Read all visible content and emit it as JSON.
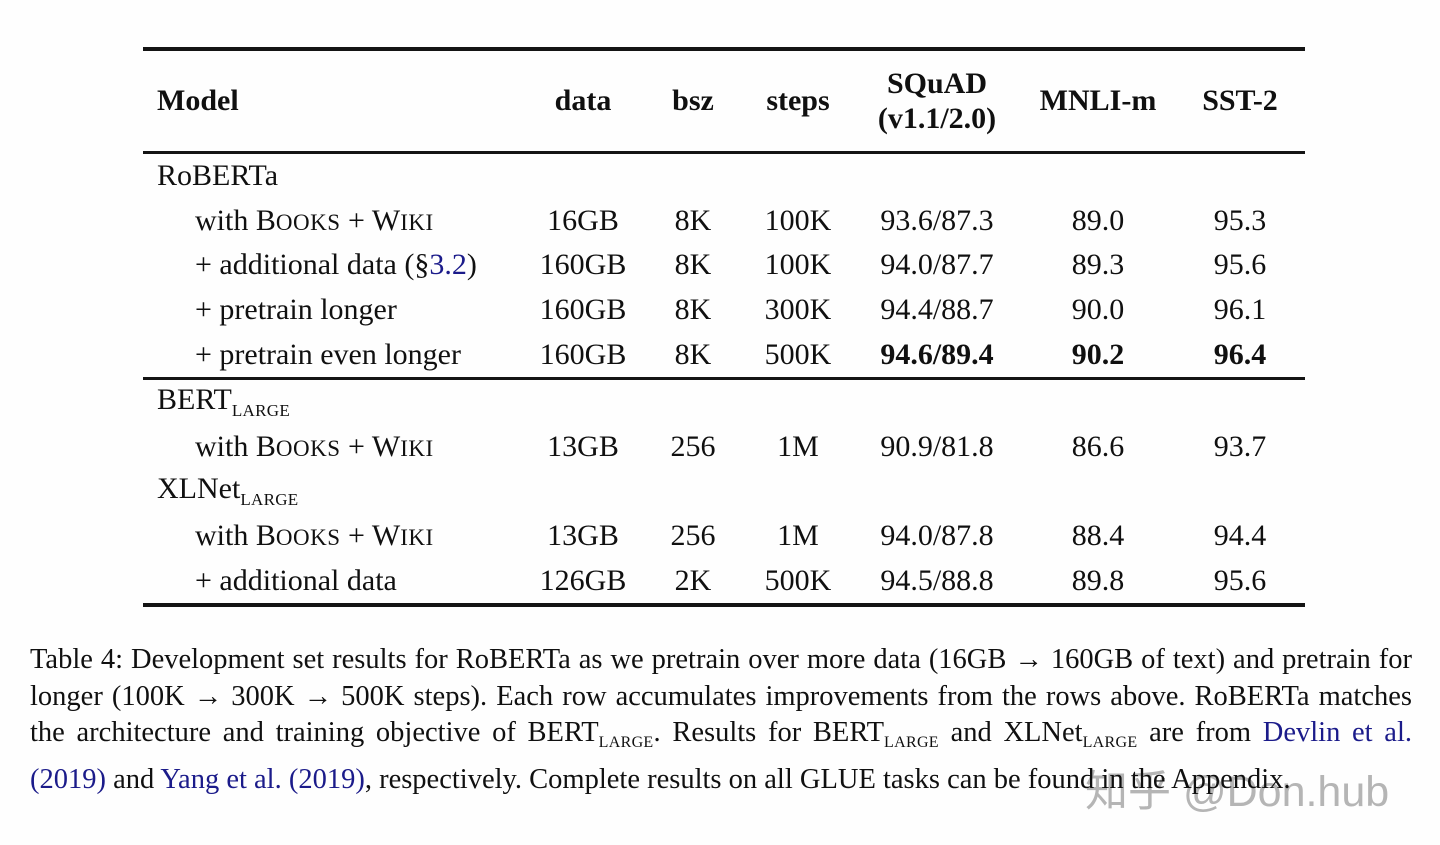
{
  "table": {
    "header": {
      "model": "Model",
      "data": "data",
      "bsz": "bsz",
      "steps": "steps",
      "squad_line1": "SQuAD",
      "squad_line2": "(v1.1/2.0)",
      "mnli": "MNLI-m",
      "sst": "SST-2"
    },
    "rows": [
      {
        "type": "group",
        "name": "RoBERTa"
      },
      {
        "type": "data",
        "label_pre": "with B",
        "label_sc1": "OOKS",
        "label_mid": " + W",
        "label_sc2": "IKI",
        "data": "16GB",
        "bsz": "8K",
        "steps": "100K",
        "squad": "93.6/87.3",
        "mnli": "89.0",
        "sst": "95.3"
      },
      {
        "type": "data",
        "label_pre": "+ additional data (§",
        "label_link": "3.2",
        "label_post": ")",
        "data": "160GB",
        "bsz": "8K",
        "steps": "100K",
        "squad": "94.0/87.7",
        "mnli": "89.3",
        "sst": "95.6"
      },
      {
        "type": "data",
        "label_pre": "+ pretrain longer",
        "data": "160GB",
        "bsz": "8K",
        "steps": "300K",
        "squad": "94.4/88.7",
        "mnli": "90.0",
        "sst": "96.1"
      },
      {
        "type": "data",
        "bold": true,
        "label_pre": "+ pretrain even longer",
        "data": "160GB",
        "bsz": "8K",
        "steps": "500K",
        "squad": "94.6/89.4",
        "mnli": "90.2",
        "sst": "96.4"
      },
      {
        "type": "group",
        "name": "BERT",
        "sub": "LARGE"
      },
      {
        "type": "data",
        "label_pre": "with B",
        "label_sc1": "OOKS",
        "label_mid": " + W",
        "label_sc2": "IKI",
        "data": "13GB",
        "bsz": "256",
        "steps": "1M",
        "squad": "90.9/81.8",
        "mnli": "86.6",
        "sst": "93.7"
      },
      {
        "type": "group",
        "name": "XLNet",
        "sub": "LARGE"
      },
      {
        "type": "data",
        "label_pre": "with B",
        "label_sc1": "OOKS",
        "label_mid": " + W",
        "label_sc2": "IKI",
        "data": "13GB",
        "bsz": "256",
        "steps": "1M",
        "squad": "94.0/87.8",
        "mnli": "88.4",
        "sst": "94.4"
      },
      {
        "type": "data",
        "label_pre": "+ additional data",
        "data": "126GB",
        "bsz": "2K",
        "steps": "500K",
        "squad": "94.5/88.8",
        "mnli": "89.8",
        "sst": "95.6"
      }
    ]
  },
  "caption": {
    "part1": "Table 4: Development set results for RoBERTa as we pretrain over more data (16GB → 160GB of text) and pretrain for longer (100K → 300K → 500K steps). Each row accumulates improvements from the rows above. RoBERTa matches the architecture and training objective of BERT",
    "sub1": "LARGE",
    "part2": ". Results for BERT",
    "sub2": "LARGE",
    "part3": " and XLNet",
    "sub3": "LARGE",
    "part4": " are from ",
    "link1": "Devlin et al. (2019)",
    "part5": " and ",
    "link2": "Yang et al. (2019)",
    "part6": ", respectively. Complete results on all GLUE tasks can be found in the Appendix."
  },
  "watermark": {
    "text": "知乎 @Don.hub"
  },
  "colors": {
    "text": "#101010",
    "link": "#1b1b8a",
    "rule": "#141414",
    "watermark": "#b5b5b5",
    "background": "#fefefe"
  }
}
